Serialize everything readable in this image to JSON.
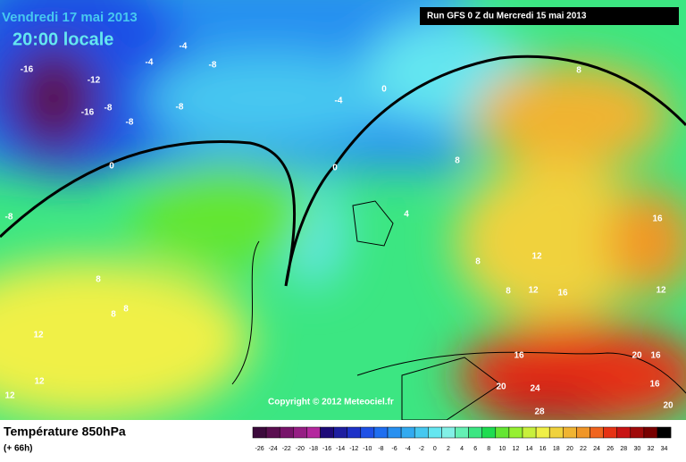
{
  "header": {
    "date": "Vendredi 17 mai 2013",
    "time": "20:00 locale",
    "run": "Run GFS 0 Z du Mercredi 15 mai 2013"
  },
  "footer": {
    "title": "Température 850hPa",
    "lead": "(+ 66h)",
    "copyright": "Copyright © 2012 Meteociel.fr"
  },
  "legend": {
    "labels": [
      "-26",
      "-24",
      "-22",
      "-20",
      "-18",
      "-16",
      "-14",
      "-12",
      "-10",
      "-8",
      "-6",
      "-4",
      "-2",
      "0",
      "2",
      "4",
      "6",
      "8",
      "10",
      "12",
      "14",
      "16",
      "18",
      "20",
      "22",
      "24",
      "26",
      "28",
      "30",
      "32",
      "34"
    ],
    "colors": [
      "#3c0a3c",
      "#5a0f50",
      "#78146a",
      "#961e84",
      "#b4289e",
      "#1e0a78",
      "#1e1ea0",
      "#1e32c8",
      "#1e50e6",
      "#1e6ef0",
      "#2890f0",
      "#32aaf0",
      "#46c8f0",
      "#64e6f0",
      "#82f0e6",
      "#64f0b4",
      "#3ce682",
      "#1edc50",
      "#64e632",
      "#96f032",
      "#c8f03c",
      "#f0f046",
      "#f0d23c",
      "#f0b432",
      "#f09628",
      "#f0641e",
      "#e63214",
      "#c81414",
      "#a00a0a",
      "#780000",
      "#000000"
    ]
  },
  "map_labels": [
    "-4",
    "-4",
    "-8",
    "-16",
    "-12",
    "-16",
    "-8",
    "-8",
    "-8",
    "-4",
    "0",
    "8",
    "0",
    "0",
    "-8",
    "4",
    "8",
    "16",
    "12",
    "8",
    "8",
    "12",
    "16",
    "12",
    "8",
    "8",
    "8",
    "12",
    "12",
    "12",
    "16",
    "20",
    "16",
    "20",
    "24",
    "16",
    "20",
    "28"
  ]
}
